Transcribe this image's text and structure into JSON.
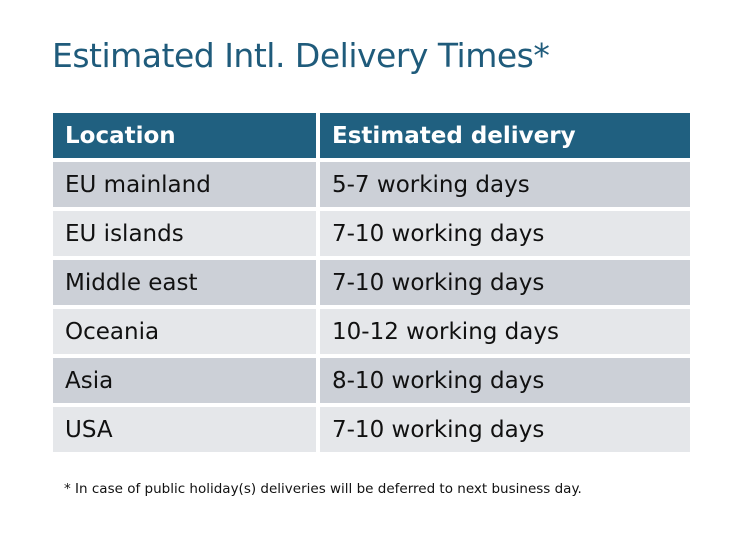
{
  "title": "Estimated Intl. Delivery Times*",
  "table": {
    "headers": [
      "Location",
      "Estimated delivery"
    ],
    "rows": [
      [
        "EU mainland",
        "5-7 working days"
      ],
      [
        "EU islands",
        "7-10 working days"
      ],
      [
        "Middle east",
        "7-10 working days"
      ],
      [
        "Oceania",
        "10-12 working days"
      ],
      [
        "Asia",
        "8-10 working days"
      ],
      [
        "USA",
        "7-10 working days"
      ]
    ]
  },
  "footnote": "* In case of public holiday(s) deliveries will be deferred to next business day.",
  "colors": {
    "header": "#206080",
    "title": "#1f5b7b",
    "row_dark": "#ccd0d7",
    "row_light": "#e5e7ea"
  }
}
